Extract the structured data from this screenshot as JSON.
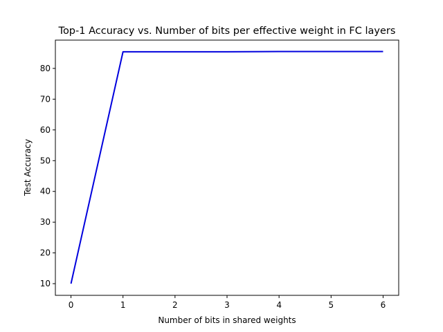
{
  "chart_data": {
    "type": "line",
    "title": "Top-1 Accuracy vs. Number of bits per effective weight in FC layers",
    "xlabel": "Number of bits in shared weights",
    "ylabel": "Test Accuracy",
    "xlim": [
      -0.3,
      6.3
    ],
    "ylim": [
      6.2,
      89.2
    ],
    "xticks": [
      0,
      1,
      2,
      3,
      4,
      5,
      6
    ],
    "yticks": [
      10,
      20,
      30,
      40,
      50,
      60,
      70,
      80
    ],
    "grid": false,
    "series": [
      {
        "color": "#0000dd",
        "x": [
          0,
          1,
          2,
          3,
          4,
          5,
          6
        ],
        "y": [
          10.0,
          85.4,
          85.4,
          85.4,
          85.5,
          85.5,
          85.5
        ]
      }
    ]
  }
}
